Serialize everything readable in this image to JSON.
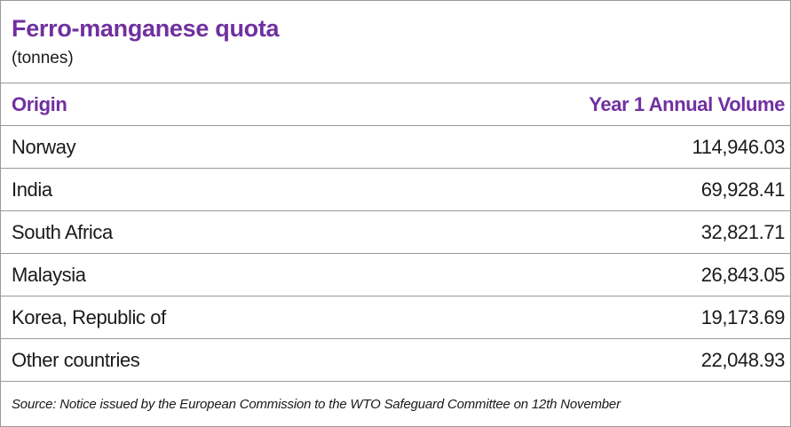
{
  "header": {
    "title": "Ferro-manganese quota",
    "subtitle": "(tonnes)"
  },
  "table": {
    "columns": [
      "Origin",
      "Year 1 Annual Volume"
    ],
    "rows": [
      [
        "Norway",
        "114,946.03"
      ],
      [
        "India",
        "69,928.41"
      ],
      [
        "South Africa",
        "32,821.71"
      ],
      [
        "Malaysia",
        "26,843.05"
      ],
      [
        "Korea, Republic of",
        "19,173.69"
      ],
      [
        "Other countries",
        "22,048.93"
      ]
    ]
  },
  "source": "Source: Notice issued by the European Commission to the WTO Safeguard Committee on 12th November"
}
